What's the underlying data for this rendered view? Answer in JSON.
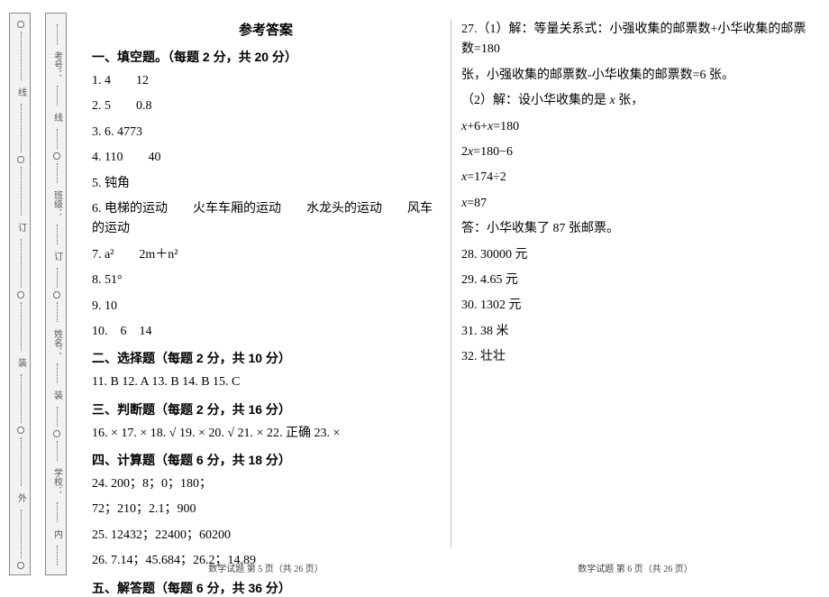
{
  "binding": {
    "outer_labels": [
      "线",
      "订",
      "装",
      "外"
    ],
    "inner_labels": [
      "考号：",
      "线",
      "班级：",
      "订",
      "姓名：",
      "装",
      "学校：",
      "内"
    ]
  },
  "title": "参考答案",
  "left": {
    "secA": "一、填空题。（每题 2 分，共 20 分）",
    "a": [
      "1. 4　　12",
      "2. 5　　0.8",
      "3. 6. 4773",
      "4. 110　　40",
      "5. 钝角",
      "6. 电梯的运动　　火车车厢的运动　　水龙头的运动　　风车的运动",
      "7. a²　　2m＋n²",
      "8. 51°",
      "9. 10",
      "10.　6　14"
    ],
    "secB": "二、选择题（每题 2 分，共 10 分）",
    "b": "11. B  12. A  13. B  14. B  15. C",
    "secC": "三、判断题（每题 2 分，共 16 分）",
    "c": "16. ×  17. ×  18. √  19. ×  20. √  21. ×  22. 正确  23. ×",
    "secD": "四、计算题（每题 6 分，共 18 分）",
    "d": [
      "24. 200；8；0；180；",
      "72；210；2.1；900",
      "25. 12432；22400；60200",
      "26. 7.14；45.684；26.2；14.89"
    ],
    "secE": "五、解答题（每题 6 分，共 36 分）",
    "footer": "数学试题  第 5 页（共 26 页）"
  },
  "right": {
    "q27a": "27.（1）解：等量关系式：小强收集的邮票数+小华收集的邮票数=180",
    "q27b": "张，小强收集的邮票数-小华收集的邮票数=6 张。",
    "q27c_pre": "（2）解：设小华收集的是 ",
    "q27c_var": "x",
    "q27c_post": " 张，",
    "eq1_a": "x",
    "eq1_b": "+6+",
    "eq1_c": "x",
    "eq1_d": "=180",
    "eq2_a": "2",
    "eq2_b": "x",
    "eq2_c": "=180−6",
    "eq3_a": "x",
    "eq3_b": "=174÷2",
    "eq4_a": "x",
    "eq4_b": "=87",
    "ans27": "答：小华收集了 87 张邮票。",
    "q28": "28. 30000 元",
    "q29": "29. 4.65 元",
    "q30": "30. 1302 元",
    "q31": "31. 38 米",
    "q32": "32. 壮壮",
    "footer": "数学试题  第 6 页（共 26 页）"
  }
}
